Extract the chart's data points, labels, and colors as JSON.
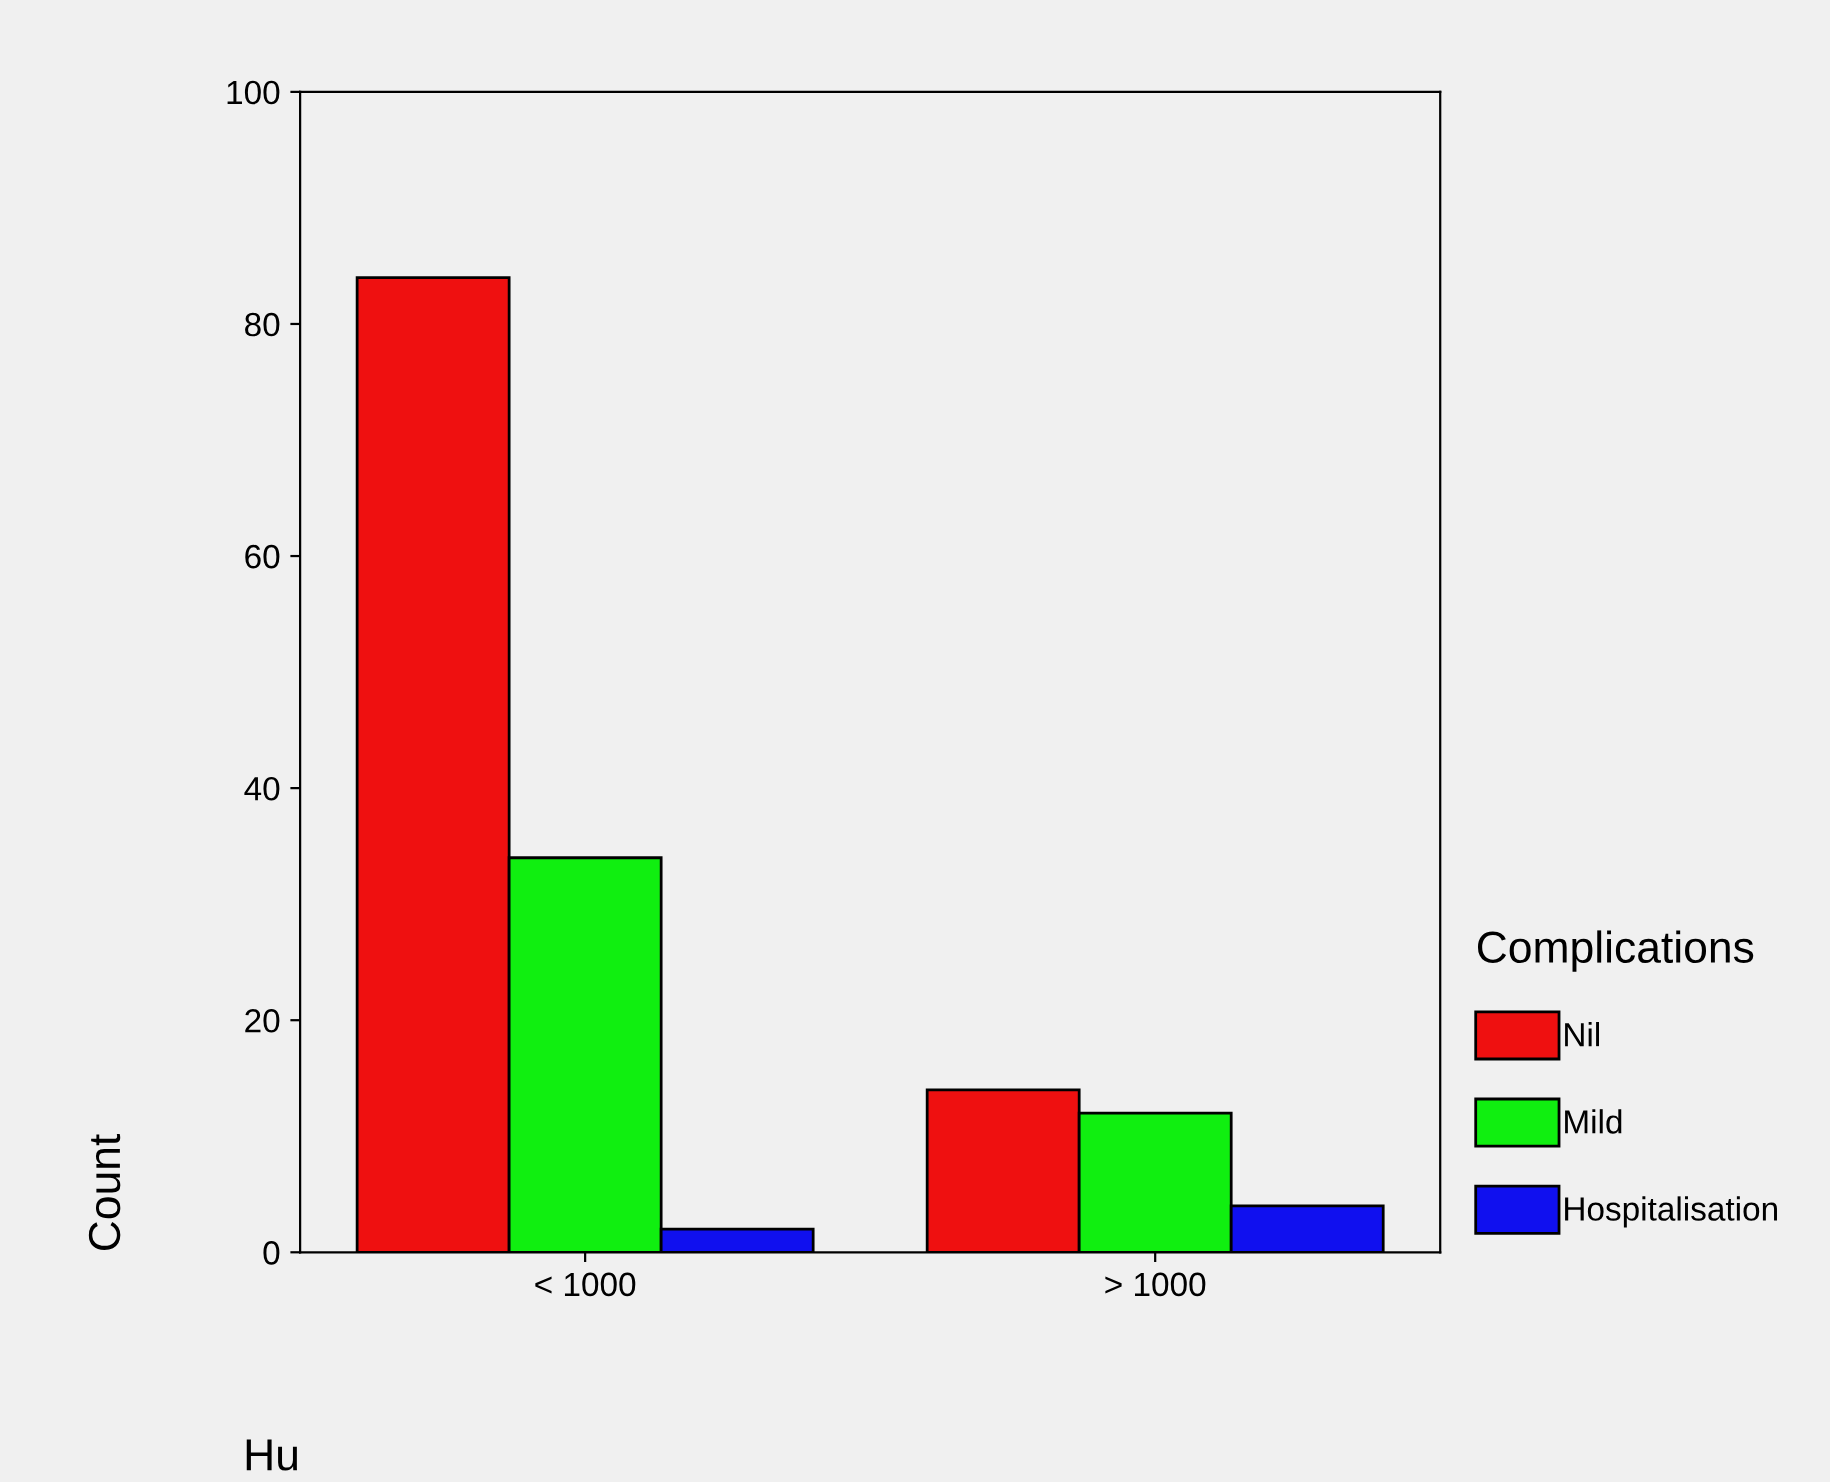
{
  "chart_data": {
    "type": "bar",
    "xlabel": "Hu",
    "ylabel": "Count",
    "legend_title": "Complications",
    "categories": [
      "< 1000",
      "> 1000"
    ],
    "series": [
      {
        "name": "Nil",
        "color": "#ef1010",
        "values": [
          84,
          14
        ]
      },
      {
        "name": "Mild",
        "color": "#10ef10",
        "values": [
          34,
          12
        ]
      },
      {
        "name": "Hospitalisation",
        "color": "#1010ef",
        "values": [
          2,
          4
        ]
      }
    ],
    "ylim": [
      0,
      100
    ],
    "yticks": [
      0,
      20,
      40,
      60,
      80,
      100
    ],
    "grid": false,
    "legend": "right"
  }
}
